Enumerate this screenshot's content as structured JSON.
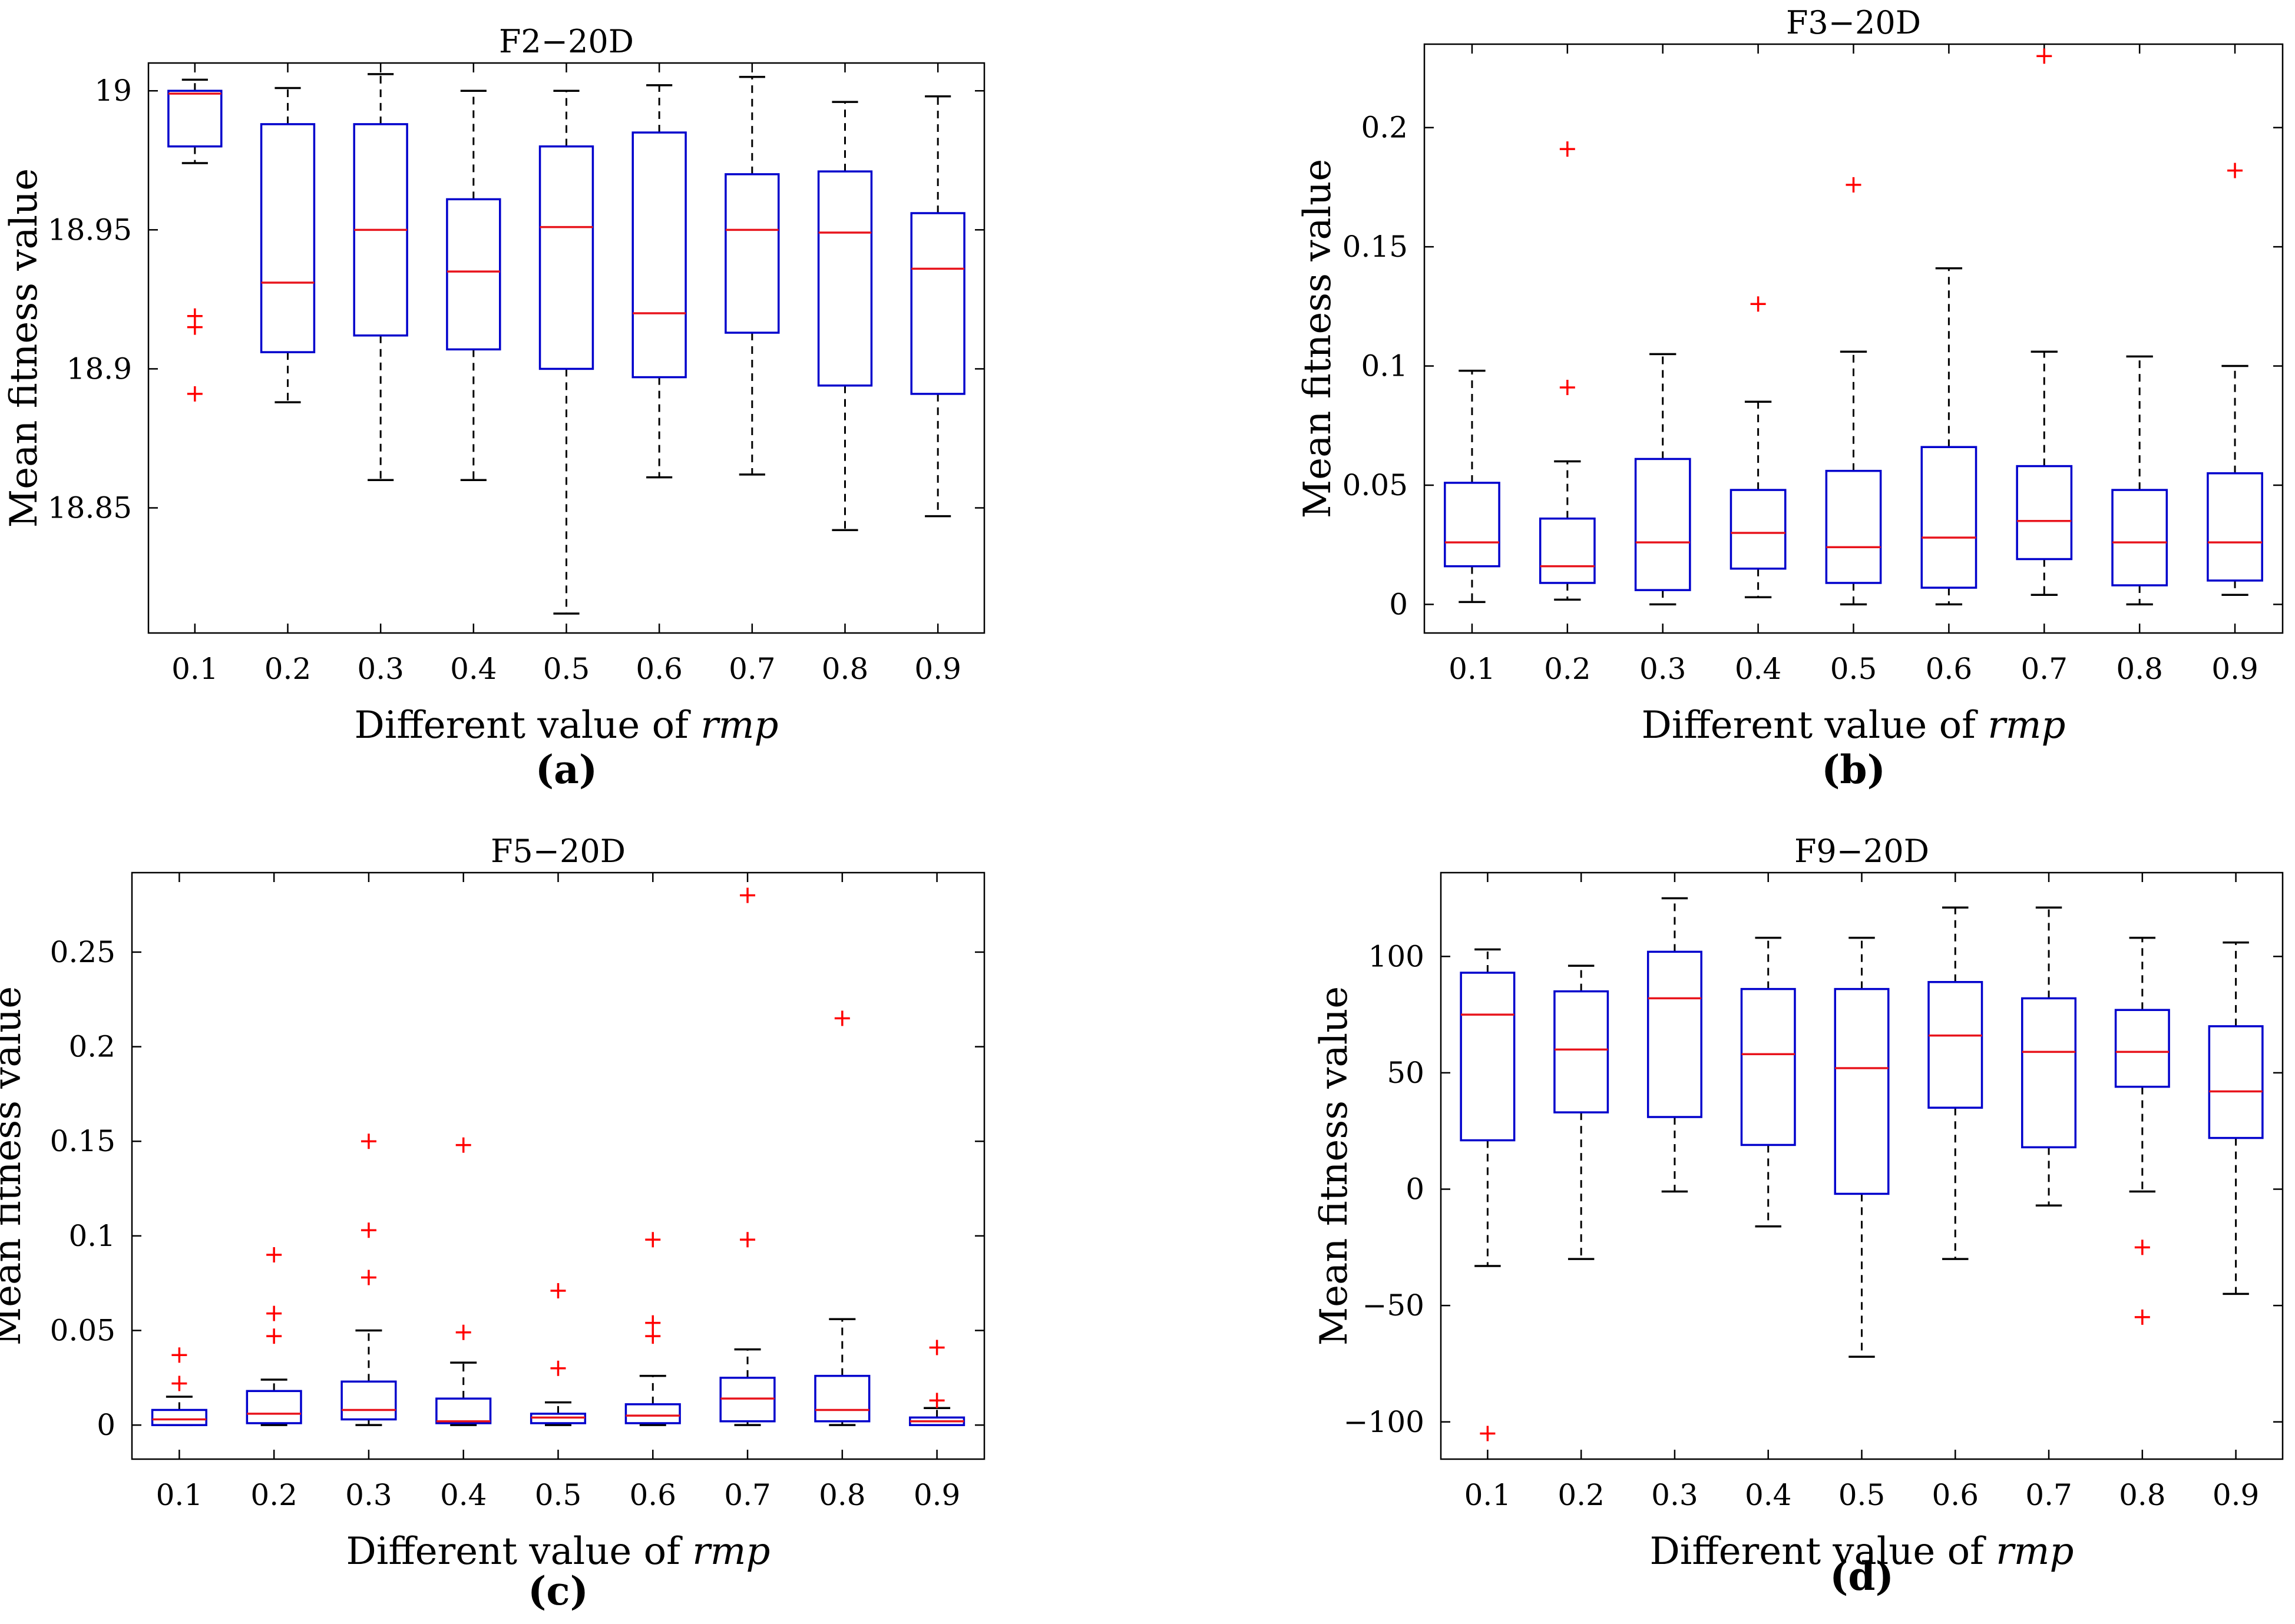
{
  "colors": {
    "box": "#0000cc",
    "median": "#e8141c",
    "whisker": "#000000",
    "outlier": "#ff0000",
    "axis": "#000000"
  },
  "chart_data": [
    {
      "type": "boxplot",
      "panel_label": "(a)",
      "title": "F2−20D",
      "xlabel_prefix": "Different value of ",
      "xlabel_italic": "rmp",
      "ylabel": "Mean fitness value",
      "ylim": [
        18.805,
        19.01
      ],
      "yticks": [
        18.85,
        18.9,
        18.95,
        19
      ],
      "ytick_labels": [
        "18.85",
        "18.9",
        "18.95",
        "19"
      ],
      "categories": [
        "0.1",
        "0.2",
        "0.3",
        "0.4",
        "0.5",
        "0.6",
        "0.7",
        "0.8",
        "0.9"
      ],
      "boxes": [
        {
          "min": 18.974,
          "q1": 18.98,
          "median": 18.999,
          "q3": 19.0,
          "max": 19.004,
          "outliers": [
            18.919,
            18.915,
            18.891
          ]
        },
        {
          "min": 18.888,
          "q1": 18.906,
          "median": 18.931,
          "q3": 18.988,
          "max": 19.001,
          "outliers": []
        },
        {
          "min": 18.86,
          "q1": 18.912,
          "median": 18.95,
          "q3": 18.988,
          "max": 19.006,
          "outliers": []
        },
        {
          "min": 18.86,
          "q1": 18.907,
          "median": 18.935,
          "q3": 18.961,
          "max": 19.0,
          "outliers": []
        },
        {
          "min": 18.812,
          "q1": 18.9,
          "median": 18.951,
          "q3": 18.98,
          "max": 19.0,
          "outliers": []
        },
        {
          "min": 18.861,
          "q1": 18.897,
          "median": 18.92,
          "q3": 18.985,
          "max": 19.002,
          "outliers": []
        },
        {
          "min": 18.862,
          "q1": 18.913,
          "median": 18.95,
          "q3": 18.97,
          "max": 19.005,
          "outliers": []
        },
        {
          "min": 18.842,
          "q1": 18.894,
          "median": 18.949,
          "q3": 18.971,
          "max": 18.996,
          "outliers": []
        },
        {
          "min": 18.847,
          "q1": 18.891,
          "median": 18.936,
          "q3": 18.956,
          "max": 18.998,
          "outliers": []
        }
      ]
    },
    {
      "type": "boxplot",
      "panel_label": "(b)",
      "title": "F3−20D",
      "xlabel_prefix": "Different value of ",
      "xlabel_italic": "rmp",
      "ylabel": "Mean fitness value",
      "ylim": [
        -0.012,
        0.235
      ],
      "yticks": [
        0,
        0.05,
        0.1,
        0.15,
        0.2
      ],
      "ytick_labels": [
        "0",
        "0.05",
        "0.1",
        "0.15",
        "0.2"
      ],
      "categories": [
        "0.1",
        "0.2",
        "0.3",
        "0.4",
        "0.5",
        "0.6",
        "0.7",
        "0.8",
        "0.9"
      ],
      "boxes": [
        {
          "min": 0.001,
          "q1": 0.016,
          "median": 0.026,
          "q3": 0.051,
          "max": 0.098,
          "outliers": []
        },
        {
          "min": 0.002,
          "q1": 0.009,
          "median": 0.016,
          "q3": 0.036,
          "max": 0.06,
          "outliers": [
            0.191,
            0.091
          ]
        },
        {
          "min": 0.0,
          "q1": 0.006,
          "median": 0.026,
          "q3": 0.061,
          "max": 0.105,
          "outliers": []
        },
        {
          "min": 0.003,
          "q1": 0.015,
          "median": 0.03,
          "q3": 0.048,
          "max": 0.085,
          "outliers": [
            0.126
          ]
        },
        {
          "min": 0.0,
          "q1": 0.009,
          "median": 0.024,
          "q3": 0.056,
          "max": 0.106,
          "outliers": [
            0.176
          ]
        },
        {
          "min": 0.0,
          "q1": 0.007,
          "median": 0.028,
          "q3": 0.066,
          "max": 0.141,
          "outliers": []
        },
        {
          "min": 0.004,
          "q1": 0.019,
          "median": 0.035,
          "q3": 0.058,
          "max": 0.106,
          "outliers": [
            0.23
          ]
        },
        {
          "min": 0.0,
          "q1": 0.008,
          "median": 0.026,
          "q3": 0.048,
          "max": 0.104,
          "outliers": []
        },
        {
          "min": 0.004,
          "q1": 0.01,
          "median": 0.026,
          "q3": 0.055,
          "max": 0.1,
          "outliers": [
            0.182
          ]
        }
      ]
    },
    {
      "type": "boxplot",
      "panel_label": "(c)",
      "title": "F5−20D",
      "xlabel_prefix": "Different value of ",
      "xlabel_italic": "rmp",
      "ylabel": "Mean fitness value",
      "ylim": [
        -0.018,
        0.292
      ],
      "yticks": [
        0,
        0.05,
        0.1,
        0.15,
        0.2,
        0.25
      ],
      "ytick_labels": [
        "0",
        "0.05",
        "0.1",
        "0.15",
        "0.2",
        "0.25"
      ],
      "categories": [
        "0.1",
        "0.2",
        "0.3",
        "0.4",
        "0.5",
        "0.6",
        "0.7",
        "0.8",
        "0.9"
      ],
      "boxes": [
        {
          "min": 0.0,
          "q1": 0.0,
          "median": 0.003,
          "q3": 0.008,
          "max": 0.015,
          "outliers": [
            0.037,
            0.022
          ]
        },
        {
          "min": 0.0,
          "q1": 0.001,
          "median": 0.006,
          "q3": 0.018,
          "max": 0.024,
          "outliers": [
            0.09,
            0.059,
            0.047
          ]
        },
        {
          "min": 0.0,
          "q1": 0.003,
          "median": 0.008,
          "q3": 0.023,
          "max": 0.05,
          "outliers": [
            0.15,
            0.103,
            0.078
          ]
        },
        {
          "min": 0.0,
          "q1": 0.001,
          "median": 0.002,
          "q3": 0.014,
          "max": 0.033,
          "outliers": [
            0.148,
            0.049
          ]
        },
        {
          "min": 0.0,
          "q1": 0.001,
          "median": 0.004,
          "q3": 0.006,
          "max": 0.012,
          "outliers": [
            0.071,
            0.03
          ]
        },
        {
          "min": 0.0,
          "q1": 0.001,
          "median": 0.005,
          "q3": 0.011,
          "max": 0.026,
          "outliers": [
            0.098,
            0.054,
            0.047
          ]
        },
        {
          "min": 0.0,
          "q1": 0.002,
          "median": 0.014,
          "q3": 0.025,
          "max": 0.04,
          "outliers": [
            0.28,
            0.098
          ]
        },
        {
          "min": 0.0,
          "q1": 0.002,
          "median": 0.008,
          "q3": 0.026,
          "max": 0.056,
          "outliers": [
            0.215
          ]
        },
        {
          "min": 0.0,
          "q1": 0.0,
          "median": 0.002,
          "q3": 0.004,
          "max": 0.009,
          "outliers": [
            0.041,
            0.013
          ]
        }
      ]
    },
    {
      "type": "boxplot",
      "panel_label": "(d)",
      "title": "F9−20D",
      "xlabel_prefix": "Different value of ",
      "xlabel_italic": "rmp",
      "ylabel": "Mean fitness value",
      "ylim": [
        -116,
        136
      ],
      "yticks": [
        -100,
        -50,
        0,
        50,
        100
      ],
      "ytick_labels": [
        "−100",
        "−50",
        "0",
        "50",
        "100"
      ],
      "categories": [
        "0.1",
        "0.2",
        "0.3",
        "0.4",
        "0.5",
        "0.6",
        "0.7",
        "0.8",
        "0.9"
      ],
      "boxes": [
        {
          "min": -33,
          "q1": 21,
          "median": 75,
          "q3": 93,
          "max": 103,
          "outliers": [
            -105
          ]
        },
        {
          "min": -30,
          "q1": 33,
          "median": 60,
          "q3": 85,
          "max": 96,
          "outliers": []
        },
        {
          "min": -1,
          "q1": 31,
          "median": 82,
          "q3": 102,
          "max": 125,
          "outliers": []
        },
        {
          "min": -16,
          "q1": 19,
          "median": 58,
          "q3": 86,
          "max": 108,
          "outliers": []
        },
        {
          "min": -72,
          "q1": -2,
          "median": 52,
          "q3": 86,
          "max": 108,
          "outliers": []
        },
        {
          "min": -30,
          "q1": 35,
          "median": 66,
          "q3": 89,
          "max": 121,
          "outliers": []
        },
        {
          "min": -7,
          "q1": 18,
          "median": 59,
          "q3": 82,
          "max": 121,
          "outliers": []
        },
        {
          "min": -1,
          "q1": 44,
          "median": 59,
          "q3": 77,
          "max": 108,
          "outliers": [
            -25,
            -55
          ]
        },
        {
          "min": -45,
          "q1": 22,
          "median": 42,
          "q3": 70,
          "max": 106,
          "outliers": []
        }
      ]
    }
  ]
}
